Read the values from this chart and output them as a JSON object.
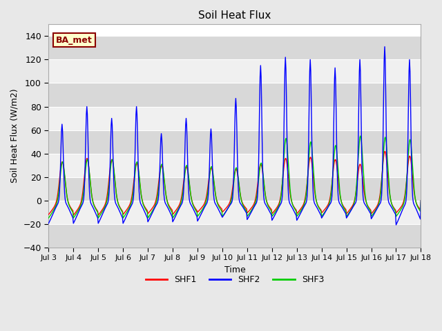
{
  "title": "Soil Heat Flux",
  "ylabel": "Soil Heat Flux (W/m2)",
  "xlabel": "Time",
  "ylim": [
    -40,
    150
  ],
  "yticks": [
    -40,
    -20,
    0,
    20,
    40,
    60,
    80,
    100,
    120,
    140
  ],
  "x_tick_labels": [
    "Jul 3",
    "Jul 4",
    "Jul 5",
    "Jul 6",
    "Jul 7",
    "Jul 8",
    "Jul 9",
    "Jul 10",
    "Jul 11",
    "Jul 12",
    "Jul 13",
    "Jul 14",
    "Jul 15",
    "Jul 16",
    "Jul 17",
    "Jul 18"
  ],
  "shf1_color": "#ff0000",
  "shf2_color": "#0000ff",
  "shf3_color": "#00cc00",
  "fig_bg_color": "#e8e8e8",
  "plot_bg_color": "#ffffff",
  "band_light": "#f0f0f0",
  "band_dark": "#d8d8d8",
  "annotation_text": "BA_met",
  "annotation_bg": "#ffffcc",
  "annotation_border": "#8b0000",
  "legend_labels": [
    "SHF1",
    "SHF2",
    "SHF3"
  ],
  "n_days": 15,
  "shf2_peaks": [
    65,
    80,
    70,
    80,
    57,
    70,
    61,
    87,
    115,
    122,
    120,
    113,
    120,
    131,
    120
  ],
  "shf1_peaks": [
    33,
    36,
    35,
    32,
    30,
    29,
    28,
    27,
    31,
    36,
    37,
    35,
    31,
    42,
    38
  ],
  "shf3_peaks": [
    33,
    35,
    35,
    33,
    31,
    30,
    29,
    28,
    32,
    53,
    50,
    47,
    55,
    54,
    52
  ],
  "shf2_troughs": [
    -30,
    -30,
    -30,
    -30,
    -28,
    -28,
    -27,
    -22,
    -25,
    -26,
    -26,
    -23,
    -23,
    -24,
    -32
  ],
  "shf1_troughs": [
    -18,
    -19,
    -19,
    -18,
    -17,
    -18,
    -15,
    -15,
    -16,
    -17,
    -17,
    -16,
    -17,
    -17,
    -16
  ],
  "shf3_troughs": [
    -22,
    -22,
    -22,
    -22,
    -22,
    -22,
    -20,
    -20,
    -20,
    -20,
    -20,
    -20,
    -20,
    -20,
    -20
  ]
}
